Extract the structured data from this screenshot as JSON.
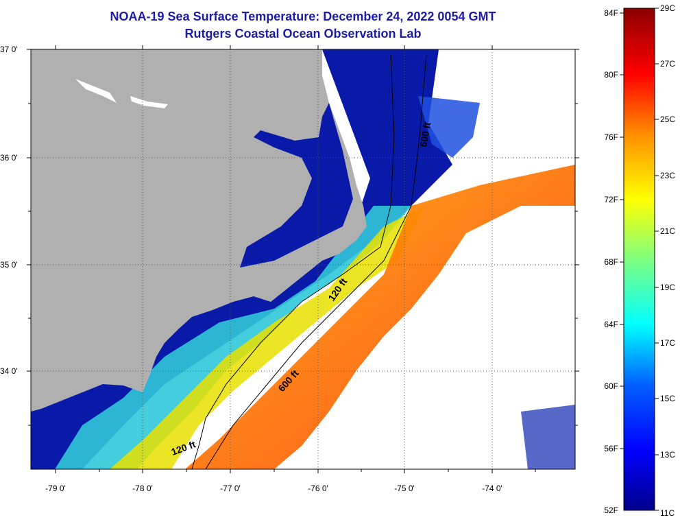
{
  "header": {
    "title": "NOAA-19 Sea Surface Temperature:  December 24, 2022 0054 GMT",
    "subtitle": "Rutgers Coastal Ocean Observation Lab"
  },
  "map": {
    "lat_labels": [
      "37 0'",
      "36 0'",
      "35 0'",
      "34 0'"
    ],
    "lon_labels": [
      "-79 0'",
      "-78 0'",
      "-77 0'",
      "-76 0'",
      "-75 0'",
      "-74 0'"
    ],
    "contour_labels": [
      "600 ft",
      "120 ft",
      "600 ft",
      "120 ft"
    ]
  },
  "colorbar": {
    "fahrenheit": [
      "84F",
      "80F",
      "76F",
      "72F",
      "68F",
      "64F",
      "60F",
      "56F",
      "52F"
    ],
    "celsius": [
      "29C",
      "27C",
      "25C",
      "23C",
      "21C",
      "19C",
      "17C",
      "15C",
      "13C",
      "11C"
    ]
  },
  "colors": {
    "title": "#1c1ca8",
    "land": "#b0b0b0",
    "cold": "#00008b",
    "warm": "#8b0000"
  }
}
